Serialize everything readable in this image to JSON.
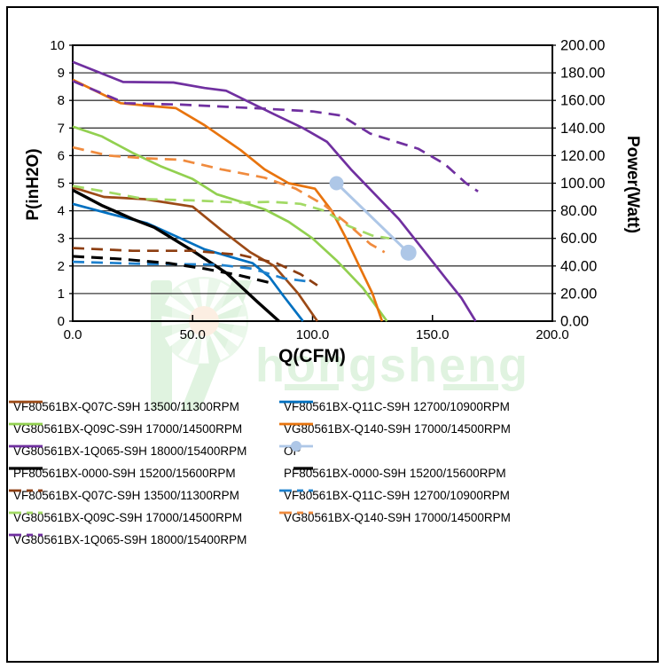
{
  "page": {
    "background": "#ffffff",
    "frame_color": "#000000"
  },
  "watermark": {
    "text": "hongsheng",
    "color": "#d9f1d9",
    "accent_color": "#fcebdb"
  },
  "chart": {
    "x_title": "Q(CFM)",
    "y_left_title": "P(inH2O)",
    "y_right_title": "Power(Watt)",
    "x_tick_labels": [
      "0.0",
      "50.0",
      "100.0",
      "150.0",
      "200.0"
    ],
    "y_left_tick_labels": [
      "0",
      "1",
      "2",
      "3",
      "4",
      "5",
      "6",
      "7",
      "8",
      "9",
      "10"
    ],
    "y_right_tick_labels": [
      "0.00",
      "20.00",
      "40.00",
      "60.00",
      "80.00",
      "100.00",
      "120.00",
      "140.00",
      "160.00",
      "180.00",
      "200.00"
    ]
  },
  "chart_data": {
    "type": "line",
    "title": "",
    "xlabel": "Q(CFM)",
    "ylabel_left": "P(inH2O)",
    "ylabel_right": "Power(Watt)",
    "x_range": [
      0,
      200
    ],
    "y_left_range": [
      0,
      10
    ],
    "y_right_range": [
      0,
      200
    ],
    "x_ticks": [
      0,
      50,
      100,
      150,
      200
    ],
    "grid": "horizontal",
    "legend_position": "bottom",
    "series": [
      {
        "name": "VF80561BX-Q07C-S9H 13500/11300RPM pressure",
        "curve": "pressure",
        "axis": "left",
        "unit": "inH2O",
        "color": "#9C4A16",
        "style": "solid",
        "points": [
          [
            0,
            4.85
          ],
          [
            13,
            4.5
          ],
          [
            30,
            4.42
          ],
          [
            50,
            4.15
          ],
          [
            62,
            3.3
          ],
          [
            74,
            2.5
          ],
          [
            84,
            2.0
          ],
          [
            94,
            1.0
          ],
          [
            102,
            0
          ]
        ]
      },
      {
        "name": "VF80561BX-Q11C-S9H 12700/10900RPM pressure",
        "curve": "pressure",
        "axis": "left",
        "unit": "inH2O",
        "color": "#0070C0",
        "style": "solid",
        "points": [
          [
            0,
            4.25
          ],
          [
            15,
            3.9
          ],
          [
            31,
            3.55
          ],
          [
            45,
            3.0
          ],
          [
            55,
            2.6
          ],
          [
            65,
            2.35
          ],
          [
            75,
            2.1
          ],
          [
            82,
            1.6
          ],
          [
            88,
            0.9
          ],
          [
            96,
            0
          ]
        ]
      },
      {
        "name": "VG80561BX-Q09C-S9H 17000/14500RPM pressure",
        "curve": "pressure",
        "axis": "left",
        "unit": "inH2O",
        "color": "#92D050",
        "style": "solid",
        "points": [
          [
            0,
            7.05
          ],
          [
            12,
            6.7
          ],
          [
            25,
            6.1
          ],
          [
            37,
            5.6
          ],
          [
            50,
            5.15
          ],
          [
            60,
            4.6
          ],
          [
            70,
            4.33
          ],
          [
            80,
            4.05
          ],
          [
            90,
            3.6
          ],
          [
            100,
            3.0
          ],
          [
            110,
            2.2
          ],
          [
            121,
            1.2
          ],
          [
            131,
            0
          ]
        ]
      },
      {
        "name": "VG80561BX-Q140-S9H 17000/14500RPM pressure",
        "curve": "pressure",
        "axis": "left",
        "unit": "inH2O",
        "color": "#E8740E",
        "style": "solid",
        "points": [
          [
            0,
            8.75
          ],
          [
            20,
            7.9
          ],
          [
            32,
            7.8
          ],
          [
            43,
            7.72
          ],
          [
            55,
            7.1
          ],
          [
            70,
            6.2
          ],
          [
            80,
            5.5
          ],
          [
            90,
            5.0
          ],
          [
            101,
            4.8
          ],
          [
            108,
            4.0
          ],
          [
            114,
            3.0
          ],
          [
            120,
            1.9
          ],
          [
            125,
            1.0
          ],
          [
            129,
            0
          ]
        ]
      },
      {
        "name": "VG80561BX-1Q065-S9H 18000/15400RPM pressure",
        "curve": "pressure",
        "axis": "left",
        "unit": "inH2O",
        "color": "#7030A0",
        "style": "solid",
        "points": [
          [
            0,
            9.4
          ],
          [
            21,
            8.67
          ],
          [
            42,
            8.65
          ],
          [
            55,
            8.45
          ],
          [
            64,
            8.35
          ],
          [
            84,
            7.5
          ],
          [
            96,
            7.0
          ],
          [
            106,
            6.5
          ],
          [
            116,
            5.5
          ],
          [
            126,
            4.6
          ],
          [
            136,
            3.7
          ],
          [
            146,
            2.6
          ],
          [
            156,
            1.5
          ],
          [
            162,
            0.85
          ],
          [
            168,
            0
          ]
        ]
      },
      {
        "name": "PF80561BX-0000-S9H 15200/15600RPM pressure",
        "curve": "pressure",
        "axis": "left",
        "unit": "inH2O",
        "color": "#000000",
        "style": "solid",
        "points": [
          [
            0,
            4.75
          ],
          [
            12,
            4.2
          ],
          [
            25,
            3.7
          ],
          [
            34,
            3.4
          ],
          [
            50,
            2.55
          ],
          [
            64,
            1.75
          ],
          [
            77,
            0.7
          ],
          [
            86,
            0
          ]
        ]
      },
      {
        "name": "OP",
        "curve": "operating-points",
        "axis": "left",
        "unit": "inH2O",
        "color": "#AEC7E7",
        "style": "solid",
        "marker": true,
        "marker_radii": [
          8,
          9
        ],
        "points": [
          [
            110,
            5.0
          ],
          [
            140,
            2.48
          ]
        ]
      },
      {
        "name": "VF80561BX-Q07C-S9H 13500/11300RPM power",
        "curve": "power",
        "axis": "right",
        "unit": "W",
        "color": "#8C3D10",
        "style": "dashed",
        "points": [
          [
            0,
            53
          ],
          [
            25,
            51
          ],
          [
            50,
            51
          ],
          [
            70,
            48
          ],
          [
            85,
            42
          ],
          [
            95,
            34
          ],
          [
            102,
            26
          ]
        ]
      },
      {
        "name": "VF80561BX-Q11C-S9H 12700/10900RPM power",
        "curve": "power",
        "axis": "right",
        "unit": "W",
        "color": "#1E81CE",
        "style": "dashed",
        "points": [
          [
            0,
            43
          ],
          [
            30,
            41.5
          ],
          [
            60,
            41
          ],
          [
            75,
            38
          ],
          [
            88,
            31
          ],
          [
            97,
            29
          ]
        ]
      },
      {
        "name": "VG80561BX-Q09C-S9H 17000/14500RPM power",
        "curve": "power",
        "axis": "right",
        "unit": "W",
        "color": "#A2DA65",
        "style": "dashed",
        "points": [
          [
            0,
            98
          ],
          [
            13,
            94
          ],
          [
            30,
            88.5
          ],
          [
            50,
            87.5
          ],
          [
            70,
            86
          ],
          [
            83,
            86.5
          ],
          [
            95,
            85
          ],
          [
            105,
            80
          ],
          [
            115,
            69
          ],
          [
            125,
            62
          ],
          [
            132,
            60
          ]
        ]
      },
      {
        "name": "VG80561BX-Q140-S9H 17000/14500RPM power",
        "curve": "power",
        "axis": "right",
        "unit": "W",
        "color": "#F08B3E",
        "style": "dashed",
        "points": [
          [
            0,
            126
          ],
          [
            15,
            120
          ],
          [
            31,
            118
          ],
          [
            45,
            117
          ],
          [
            62,
            110
          ],
          [
            80,
            104
          ],
          [
            93,
            96
          ],
          [
            105,
            84
          ],
          [
            115,
            70
          ],
          [
            124,
            56
          ],
          [
            130,
            50
          ]
        ]
      },
      {
        "name": "VG80561BX-1Q065-S9H 18000/15400RPM power",
        "curve": "power",
        "axis": "right",
        "unit": "W",
        "color": "#7030A0",
        "style": "dashed",
        "points": [
          [
            0,
            174
          ],
          [
            22,
            158
          ],
          [
            45,
            157
          ],
          [
            80,
            154
          ],
          [
            100,
            152
          ],
          [
            112,
            149
          ],
          [
            124,
            136
          ],
          [
            144,
            125
          ],
          [
            155,
            114
          ],
          [
            164,
            100
          ],
          [
            169,
            94
          ]
        ]
      },
      {
        "name": "PF80561BX-0000-S9H 15200/15600RPM power",
        "curve": "power",
        "axis": "right",
        "unit": "W",
        "color": "#000000",
        "style": "dashed",
        "points": [
          [
            0,
            47
          ],
          [
            20,
            45
          ],
          [
            40,
            42
          ],
          [
            55,
            38
          ],
          [
            70,
            33
          ],
          [
            83,
            27.5
          ]
        ]
      }
    ]
  },
  "legend": {
    "items": [
      {
        "label": "VF80561BX-Q07C-S9H 13500/11300RPM",
        "color": "#9C4A16",
        "style": "solid",
        "col": 0,
        "row": 0
      },
      {
        "label": "VF80561BX-Q11C-S9H 12700/10900RPM",
        "color": "#0070C0",
        "style": "solid",
        "col": 1,
        "row": 0
      },
      {
        "label": "VG80561BX-Q09C-S9H 17000/14500RPM",
        "color": "#92D050",
        "style": "solid",
        "col": 0,
        "row": 1
      },
      {
        "label": "VG80561BX-Q140-S9H 17000/14500RPM",
        "color": "#E8740E",
        "style": "solid",
        "col": 1,
        "row": 1
      },
      {
        "label": "VG80561BX-1Q065-S9H 18000/15400RPM",
        "color": "#7030A0",
        "style": "solid",
        "col": 0,
        "row": 2
      },
      {
        "label": "OP",
        "color": "#AEC7E7",
        "style": "marker",
        "col": 1,
        "row": 2
      },
      {
        "label": "PF80561BX-0000-S9H 15200/15600RPM",
        "color": "#000000",
        "style": "solid",
        "col": 0,
        "row": 3
      },
      {
        "label": "PF80561BX-0000-S9H 15200/15600RPM",
        "color": "#000000",
        "style": "solid-short",
        "col": 1,
        "row": 3
      },
      {
        "label": "VF80561BX-Q07C-S9H 13500/11300RPM",
        "color": "#8C3D10",
        "style": "dashed",
        "col": 0,
        "row": 4
      },
      {
        "label": "VF80561BX-Q11C-S9H 12700/10900RPM",
        "color": "#1E81CE",
        "style": "dashed",
        "col": 1,
        "row": 4
      },
      {
        "label": "VG80561BX-Q09C-S9H 17000/14500RPM",
        "color": "#A2DA65",
        "style": "dashed",
        "col": 0,
        "row": 5
      },
      {
        "label": "VG80561BX-Q140-S9H 17000/14500RPM",
        "color": "#F08B3E",
        "style": "dashed",
        "col": 1,
        "row": 5
      },
      {
        "label": "VG80561BX-1Q065-S9H 18000/15400RPM",
        "color": "#7030A0",
        "style": "dashed",
        "col": 0,
        "row": 6
      }
    ]
  }
}
